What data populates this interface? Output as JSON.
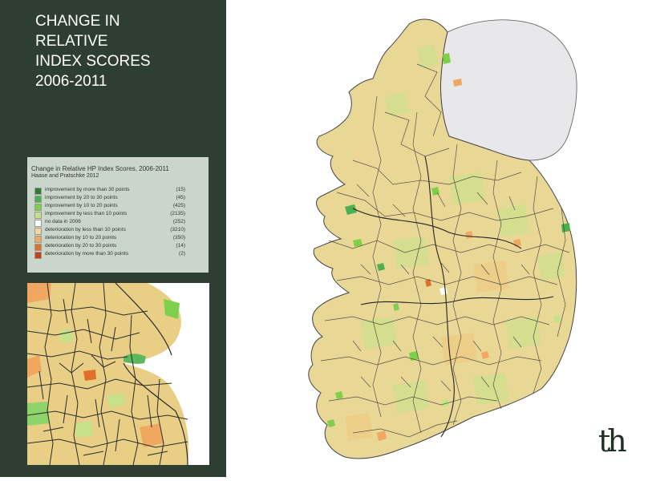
{
  "title_lines": [
    "CHANGE IN",
    "RELATIVE",
    "INDEX SCORES",
    "2006-2011"
  ],
  "legend": {
    "title": "Change in Relative HP Index Scores, 2006-2011",
    "source": "Haase and Pratschke 2012",
    "items": [
      {
        "label": "improvement by more than 30 points",
        "count": "(15)",
        "color": "#2e7d32"
      },
      {
        "label": "improvement by 20 to 30 points",
        "count": "(45)",
        "color": "#4caf50"
      },
      {
        "label": "improvement by 10 to 20 points",
        "count": "(425)",
        "color": "#7ed04b"
      },
      {
        "label": "improvement by less than 10 points",
        "count": "(2135)",
        "color": "#c5e28a"
      },
      {
        "label": "no data in 2006",
        "count": "(252)",
        "color": "#ffffff"
      },
      {
        "label": "deterioration by less than 10 points",
        "count": "(3210)",
        "color": "#f3d69a"
      },
      {
        "label": "deterioration by 10 to 20 points",
        "count": "(350)",
        "color": "#f0a860"
      },
      {
        "label": "deterioration by 20 to 30 points",
        "count": "(14)",
        "color": "#e0702a"
      },
      {
        "label": "deterioration by more than 30 points",
        "count": "(2)",
        "color": "#c0441a"
      }
    ]
  },
  "logo_text": "th",
  "colors": {
    "sidebar": "#2f3e32",
    "northern_ireland": "#e8e8ea",
    "map_base": "#e9d796",
    "map_boundary": "#2a2a2a"
  }
}
